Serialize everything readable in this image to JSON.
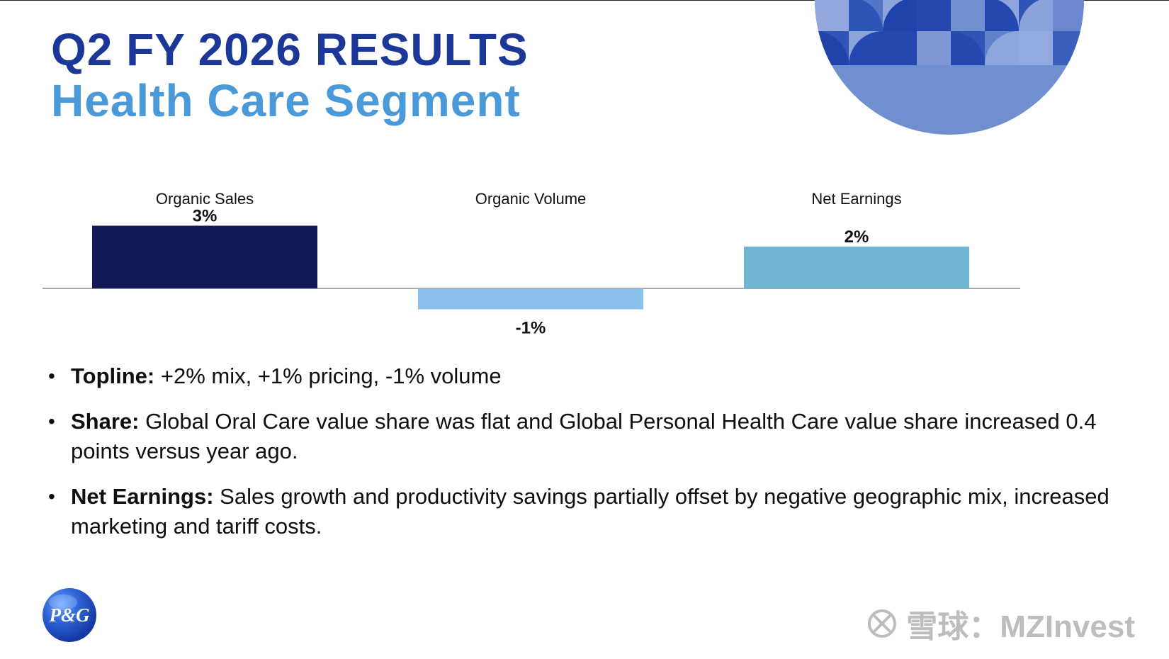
{
  "header": {
    "title": "Q2 FY 2026 RESULTS",
    "subtitle": "Health Care Segment"
  },
  "chart_data": {
    "type": "bar",
    "categories": [
      "Organic Sales",
      "Organic Volume",
      "Net Earnings"
    ],
    "values": [
      3,
      -1,
      2
    ],
    "value_labels": [
      "3%",
      "-1%",
      "2%"
    ],
    "title": "",
    "xlabel": "",
    "ylabel": "",
    "ylim": [
      -1,
      3
    ],
    "colors": [
      "#141a55",
      "#8cc0ec",
      "#71b6d0"
    ],
    "grid": false,
    "legend": "none"
  },
  "bullets": [
    {
      "label": "Topline:",
      "text": "+2% mix, +1% pricing, -1% volume"
    },
    {
      "label": "Share:",
      "text": "Global Oral Care value share was flat and Global Personal Health Care value share increased 0.4 points versus year ago."
    },
    {
      "label": "Net Earnings:",
      "text": "Sales growth and productivity savings partially offset by negative geographic mix, increased marketing and tariff costs."
    }
  ],
  "logo": {
    "text": "P&G"
  },
  "watermark": {
    "text": "雪球：MZInvest"
  },
  "theme": {
    "primary_blue": "#1b3797",
    "secondary_blue": "#4a9ad9"
  }
}
